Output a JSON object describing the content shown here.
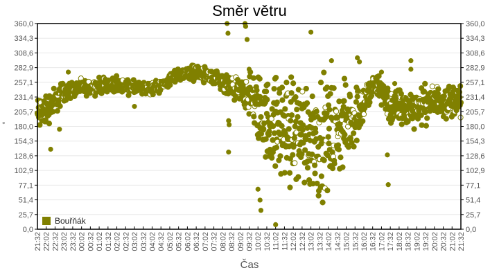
{
  "chart_data": {
    "type": "scatter",
    "title": "Směr větru",
    "xlabel": "Čas",
    "ylabel": "°",
    "ylabel_right": "°",
    "ylim": [
      0,
      360
    ],
    "y_ticks": [
      "0,0",
      "25,7",
      "51,4",
      "77,1",
      "102,9",
      "128,6",
      "154,3",
      "180,0",
      "205,7",
      "231,4",
      "257,1",
      "282,9",
      "308,6",
      "334,3",
      "360,0"
    ],
    "x_ticks": [
      "21:32",
      "22:02",
      "22:32",
      "23:02",
      "23:32",
      "00:02",
      "00:32",
      "01:02",
      "01:32",
      "02:02",
      "02:32",
      "03:02",
      "03:32",
      "04:02",
      "04:32",
      "05:02",
      "05:32",
      "06:02",
      "06:32",
      "07:02",
      "07:32",
      "08:02",
      "08:32",
      "09:02",
      "09:32",
      "10:02",
      "10:32",
      "11:02",
      "11:32",
      "12:02",
      "12:32",
      "13:02",
      "13:32",
      "14:02",
      "14:32",
      "15:02",
      "15:32",
      "16:02",
      "16:32",
      "17:02",
      "17:32",
      "18:02",
      "18:32",
      "19:02",
      "19:32",
      "20:02",
      "20:32",
      "21:02",
      "21:32"
    ],
    "x_range_minutes": [
      0,
      1440
    ],
    "grid": true,
    "legend": {
      "position": "bottom-left-inside",
      "entries": [
        {
          "name": "Bouřňák",
          "color": "#808000"
        }
      ]
    },
    "series": [
      {
        "name": "Bouřňák",
        "color": "#808000",
        "marker": "circle",
        "trend": [
          [
            0,
            200
          ],
          [
            30,
            210
          ],
          [
            60,
            225
          ],
          [
            90,
            240
          ],
          [
            120,
            245
          ],
          [
            180,
            248
          ],
          [
            240,
            255
          ],
          [
            300,
            250
          ],
          [
            360,
            245
          ],
          [
            420,
            250
          ],
          [
            480,
            272
          ],
          [
            540,
            275
          ],
          [
            600,
            262
          ],
          [
            660,
            245
          ],
          [
            720,
            235
          ],
          [
            750,
            210
          ],
          [
            780,
            190
          ],
          [
            840,
            175
          ],
          [
            900,
            170
          ],
          [
            960,
            160
          ],
          [
            1020,
            170
          ],
          [
            1080,
            200
          ],
          [
            1110,
            220
          ],
          [
            1140,
            250
          ],
          [
            1170,
            245
          ],
          [
            1200,
            215
          ],
          [
            1260,
            210
          ],
          [
            1320,
            220
          ],
          [
            1380,
            225
          ],
          [
            1440,
            225
          ]
        ],
        "spread": [
          [
            0,
            25
          ],
          [
            120,
            10
          ],
          [
            480,
            8
          ],
          [
            690,
            15
          ],
          [
            750,
            45
          ],
          [
            840,
            70
          ],
          [
            960,
            75
          ],
          [
            1080,
            40
          ],
          [
            1140,
            15
          ],
          [
            1200,
            25
          ],
          [
            1440,
            20
          ]
        ],
        "outliers": [
          [
            45,
            140
          ],
          [
            75,
            175
          ],
          [
            105,
            275
          ],
          [
            330,
            215
          ],
          [
            645,
            360
          ],
          [
            648,
            343
          ],
          [
            650,
            190
          ],
          [
            652,
            183
          ],
          [
            650,
            135
          ],
          [
            706,
            360
          ],
          [
            708,
            355
          ],
          [
            713,
            332
          ],
          [
            720,
            280
          ],
          [
            750,
            70
          ],
          [
            757,
            51
          ],
          [
            760,
            33
          ],
          [
            810,
            8
          ],
          [
            930,
            345
          ],
          [
            1000,
            295
          ],
          [
            1088,
            300
          ],
          [
            1095,
            293
          ],
          [
            1170,
            275
          ],
          [
            1193,
            78
          ],
          [
            1190,
            130
          ],
          [
            1270,
            295
          ],
          [
            1270,
            280
          ],
          [
            1215,
            255
          ]
        ],
        "points_per_minute": 1
      }
    ]
  }
}
